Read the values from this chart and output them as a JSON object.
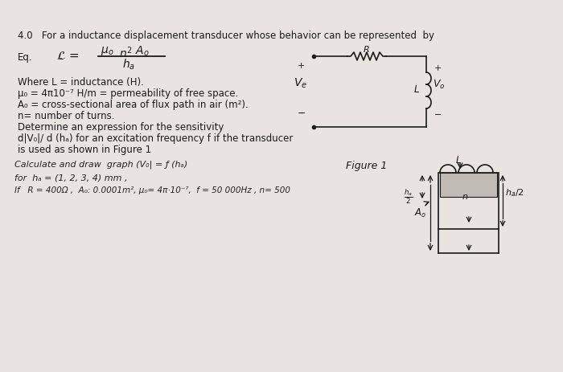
{
  "bg_color": "#e8e5e0",
  "page_bg": "#f0ede8",
  "text_color": "#1a1a1a",
  "title_line": "4.0   For a inductance displacement transducer whose behavior can be represented  by",
  "where_lines": [
    "Where L = inductance (H).",
    "μ₀ = 4π10⁻⁷ H/m = permeability of free space.",
    "A₀ = cross-sectional area of flux path in air (m²).",
    "n= number of turns.",
    "Determine an expression for the sensitivity",
    "d|V₀|/ d (hₐ) for an excitation frequency f if the transducer",
    "is used as shown in Figure 1"
  ],
  "hw_line1": "Calculate and draw  graph (V₀| = ƒ (hₐ)",
  "hw_line2": "for  hₐ = (1, 2, 3, 4) mm ,",
  "hw_line3": "If   R = 400Ω ,  A₀: 0.0001m², μ₀= 4π·10⁻⁷,  f = 50 000Hz , n= 500",
  "figure_label": "Figure 1",
  "fs_title": 8.5,
  "fs_body": 8.5,
  "fs_hw": 8.0
}
